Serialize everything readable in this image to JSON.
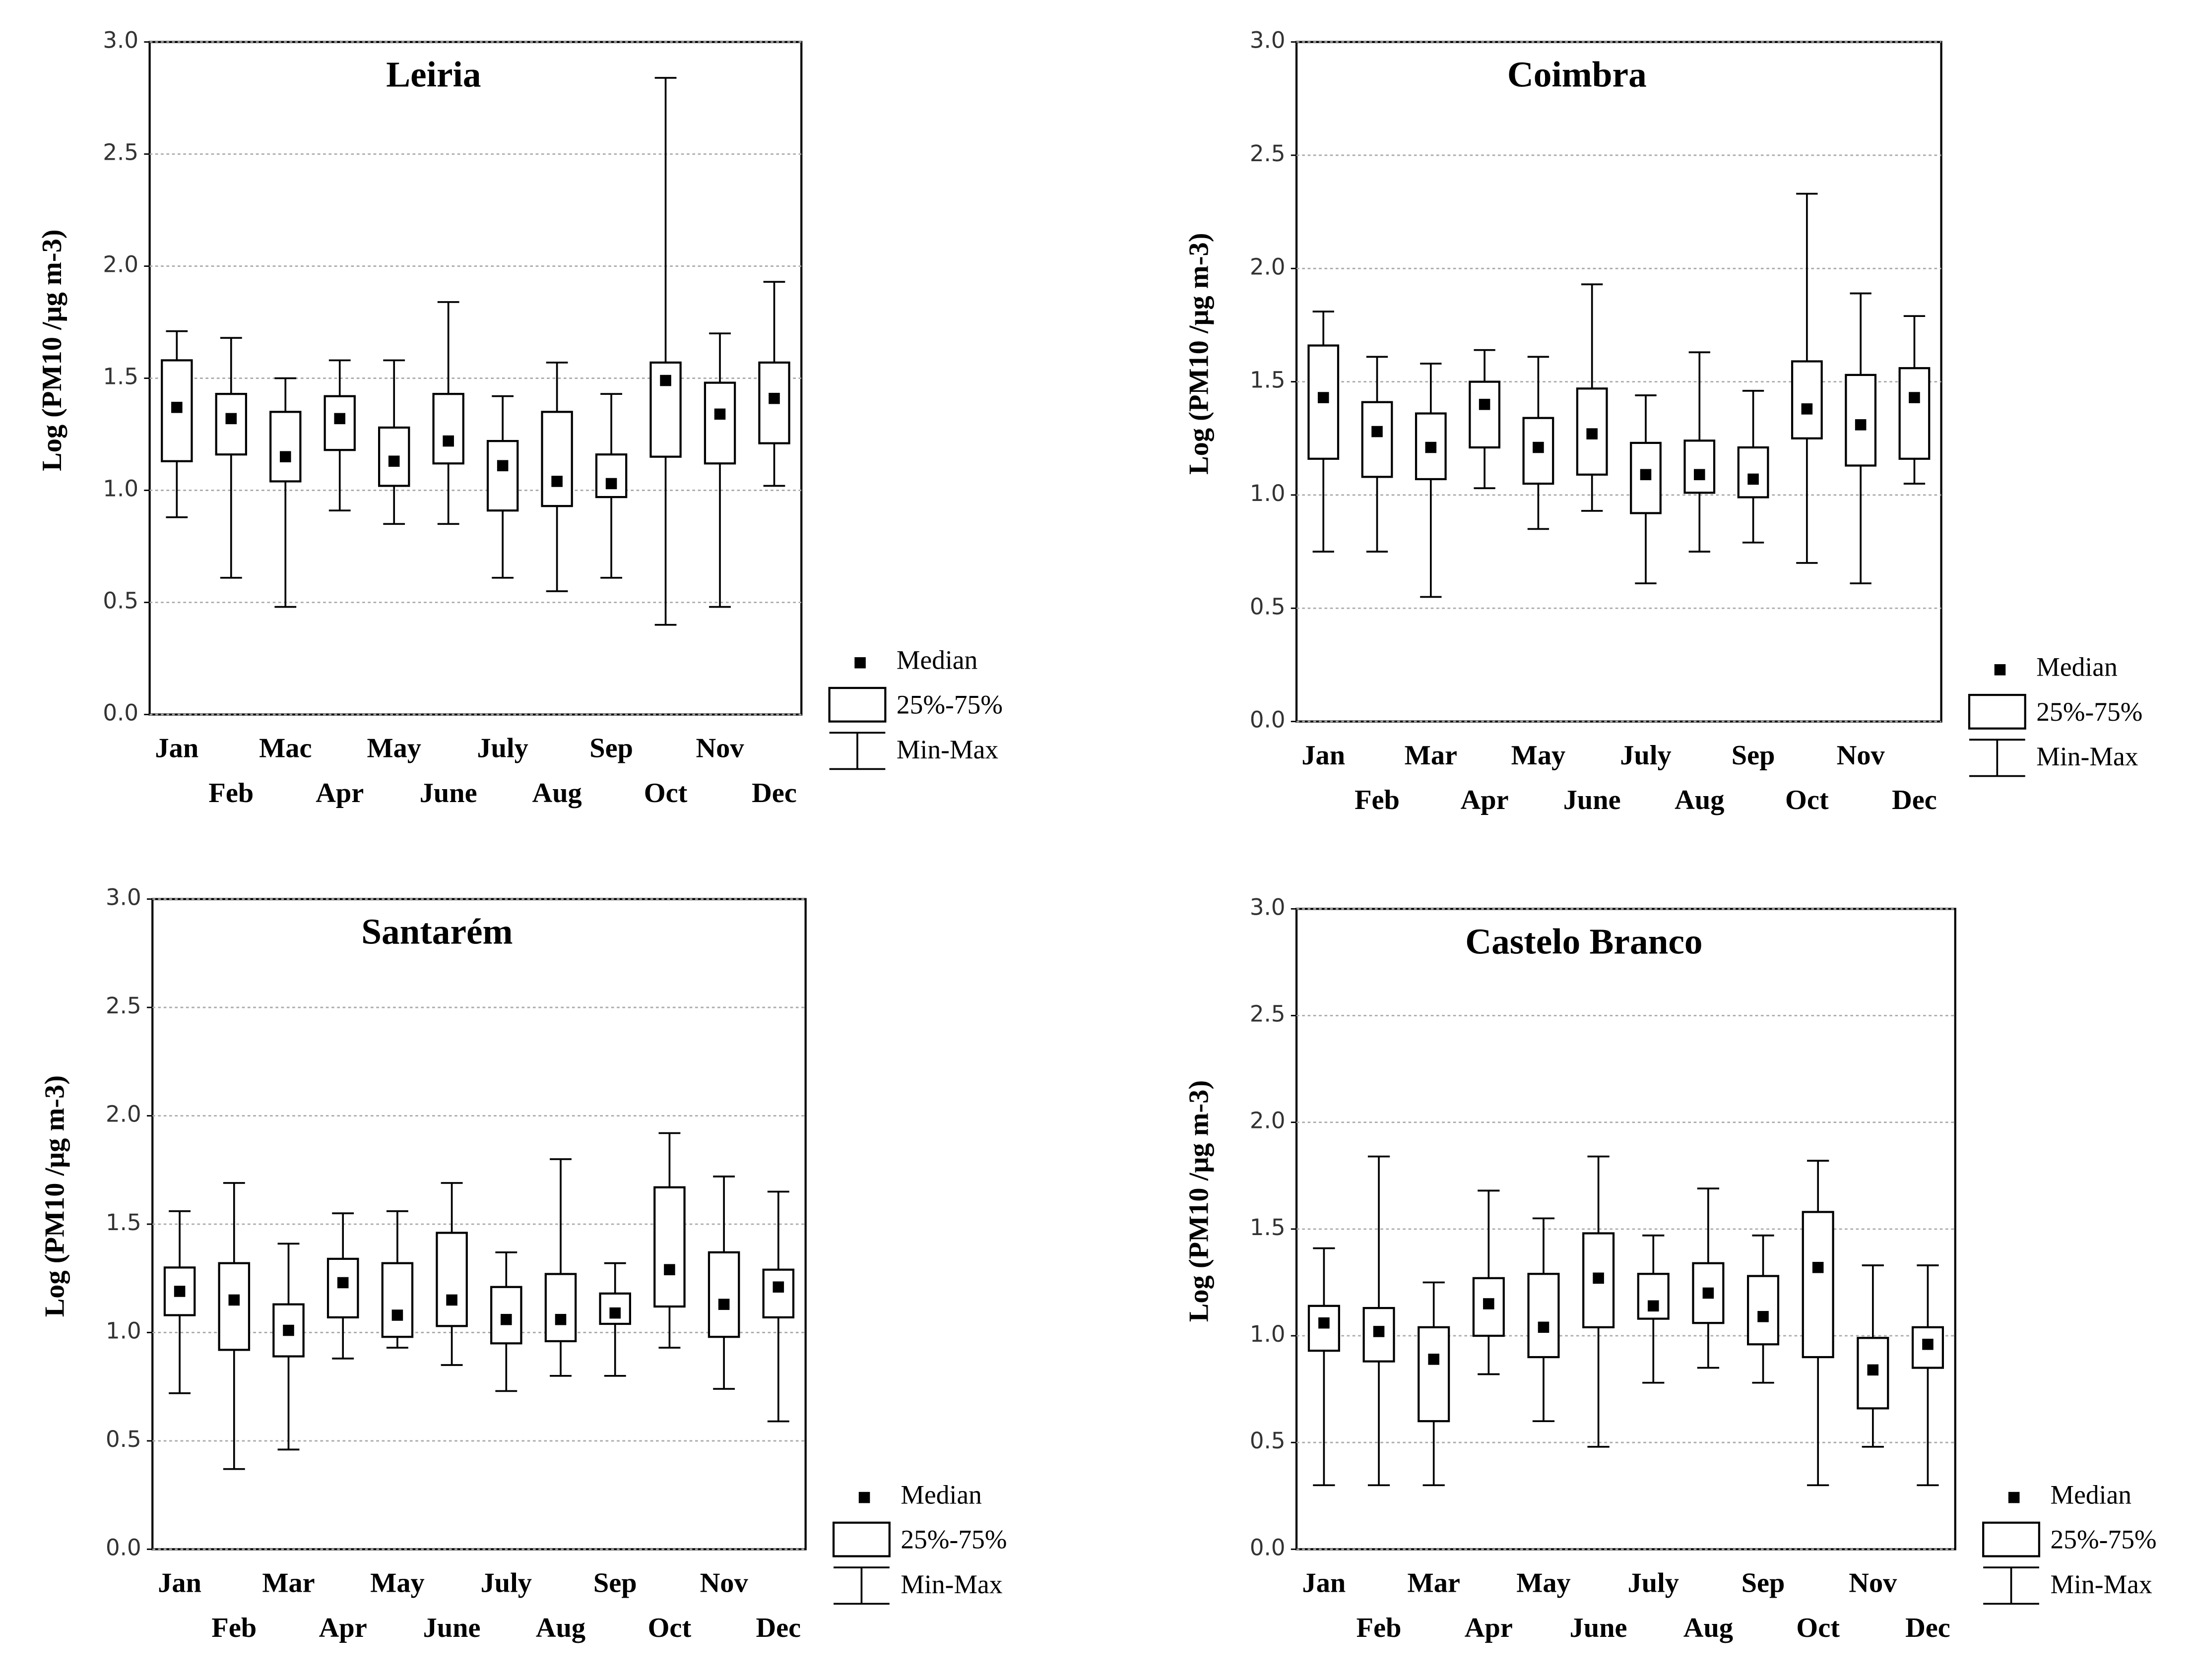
{
  "chart_data": [
    {
      "type": "box",
      "title": "Leiria",
      "y_label": "Log (PM10 /μg m-3)",
      "categories": [
        "Jan",
        "Feb",
        "Mac",
        "Apr",
        "May",
        "June",
        "July",
        "Aug",
        "Sep",
        "Oct",
        "Nov",
        "Dec"
      ],
      "min": [
        0.88,
        0.61,
        0.48,
        0.91,
        0.85,
        0.85,
        0.61,
        0.55,
        0.61,
        0.4,
        0.48,
        1.02
      ],
      "q1": [
        1.13,
        1.16,
        1.04,
        1.18,
        1.02,
        1.12,
        0.91,
        0.93,
        0.97,
        1.15,
        1.12,
        1.21
      ],
      "median": [
        1.37,
        1.32,
        1.15,
        1.32,
        1.13,
        1.22,
        1.11,
        1.04,
        1.03,
        1.49,
        1.34,
        1.41
      ],
      "q3": [
        1.58,
        1.43,
        1.35,
        1.42,
        1.28,
        1.43,
        1.22,
        1.35,
        1.16,
        1.57,
        1.48,
        1.57
      ],
      "max": [
        1.71,
        1.68,
        1.5,
        1.58,
        1.58,
        1.84,
        1.42,
        1.57,
        1.43,
        2.84,
        1.7,
        1.93
      ],
      "ylim": [
        0,
        3
      ],
      "yticks": [
        {
          "value": 0,
          "label": "0.0"
        },
        0.5,
        {
          "value": 1,
          "label": "1.0"
        },
        1.5,
        {
          "value": 2,
          "label": "2.0"
        },
        2.5,
        {
          "value": 3,
          "label": "3.0"
        }
      ],
      "grid": true,
      "color": "#000000",
      "legend": [
        "Median",
        "25%-75%",
        "Min-Max"
      ]
    },
    {
      "type": "box",
      "title": "Coimbra",
      "y_label": "Log (PM10 /μg m-3)",
      "categories": [
        "Jan",
        "Feb",
        "Mar",
        "Apr",
        "May",
        "June",
        "July",
        "Aug",
        "Sep",
        "Oct",
        "Nov",
        "Dec"
      ],
      "min": [
        0.75,
        0.75,
        0.55,
        1.03,
        0.85,
        0.93,
        0.61,
        0.75,
        0.79,
        0.7,
        0.61,
        1.05
      ],
      "q1": [
        1.16,
        1.08,
        1.07,
        1.21,
        1.05,
        1.09,
        0.92,
        1.01,
        0.99,
        1.25,
        1.13,
        1.16
      ],
      "median": [
        1.43,
        1.28,
        1.21,
        1.4,
        1.21,
        1.27,
        1.09,
        1.09,
        1.07,
        1.38,
        1.31,
        1.43
      ],
      "q3": [
        1.66,
        1.41,
        1.36,
        1.5,
        1.34,
        1.47,
        1.23,
        1.24,
        1.21,
        1.59,
        1.53,
        1.56
      ],
      "max": [
        1.81,
        1.61,
        1.58,
        1.64,
        1.61,
        1.93,
        1.44,
        1.63,
        1.46,
        2.33,
        1.89,
        1.79
      ],
      "ylim": [
        0,
        3
      ],
      "yticks": [
        {
          "value": 0,
          "label": "0.0"
        },
        0.5,
        {
          "value": 1,
          "label": "1.0"
        },
        1.5,
        {
          "value": 2,
          "label": "2.0"
        },
        2.5,
        {
          "value": 3,
          "label": "3.0"
        }
      ],
      "grid": true,
      "color": "#000000",
      "legend": [
        "Median",
        "25%-75%",
        "Min-Max"
      ]
    },
    {
      "type": "box",
      "title": "Santarém",
      "y_label": "Log (PM10 /μg m-3)",
      "categories": [
        "Jan",
        "Feb",
        "Mar",
        "Apr",
        "May",
        "June",
        "July",
        "Aug",
        "Sep",
        "Oct",
        "Nov",
        "Dec"
      ],
      "min": [
        0.72,
        0.37,
        0.46,
        0.88,
        0.93,
        0.85,
        0.73,
        0.8,
        0.8,
        0.93,
        0.74,
        0.59
      ],
      "q1": [
        1.08,
        0.92,
        0.89,
        1.07,
        0.98,
        1.03,
        0.95,
        0.96,
        1.04,
        1.12,
        0.98,
        1.07
      ],
      "median": [
        1.19,
        1.15,
        1.01,
        1.23,
        1.08,
        1.15,
        1.06,
        1.06,
        1.09,
        1.29,
        1.13,
        1.21
      ],
      "q3": [
        1.3,
        1.32,
        1.13,
        1.34,
        1.32,
        1.46,
        1.21,
        1.27,
        1.18,
        1.67,
        1.37,
        1.29
      ],
      "max": [
        1.56,
        1.69,
        1.41,
        1.55,
        1.56,
        1.69,
        1.37,
        1.8,
        1.32,
        1.92,
        1.72,
        1.65
      ],
      "ylim": [
        0,
        3
      ],
      "yticks": [
        {
          "value": 0,
          "label": "0.0"
        },
        0.5,
        {
          "value": 1,
          "label": "1.0"
        },
        1.5,
        {
          "value": 2,
          "label": "2.0"
        },
        2.5,
        {
          "value": 3,
          "label": "3.0"
        }
      ],
      "grid": true,
      "color": "#000000",
      "legend": [
        "Median",
        "25%-75%",
        "Min-Max"
      ]
    },
    {
      "type": "box",
      "title": "Castelo Branco",
      "y_label": "Log (PM10 /μg m-3)",
      "categories": [
        "Jan",
        "Feb",
        "Mar",
        "Apr",
        "May",
        "June",
        "July",
        "Aug",
        "Sep",
        "Oct",
        "Nov",
        "Dec"
      ],
      "min": [
        0.3,
        0.3,
        0.3,
        0.82,
        0.6,
        0.48,
        0.78,
        0.85,
        0.78,
        0.3,
        0.48,
        0.3
      ],
      "q1": [
        0.93,
        0.88,
        0.6,
        1.0,
        0.9,
        1.04,
        1.08,
        1.06,
        0.96,
        0.9,
        0.66,
        0.85
      ],
      "median": [
        1.06,
        1.02,
        0.89,
        1.15,
        1.04,
        1.27,
        1.14,
        1.2,
        1.09,
        1.32,
        0.84,
        0.96
      ],
      "q3": [
        1.14,
        1.13,
        1.04,
        1.27,
        1.29,
        1.48,
        1.29,
        1.34,
        1.28,
        1.58,
        0.99,
        1.04
      ],
      "max": [
        1.41,
        1.84,
        1.25,
        1.68,
        1.55,
        1.84,
        1.47,
        1.69,
        1.47,
        1.82,
        1.33,
        1.33
      ],
      "ylim": [
        0,
        3
      ],
      "yticks": [
        {
          "value": 0,
          "label": "0.0"
        },
        0.5,
        {
          "value": 1,
          "label": "1.0"
        },
        1.5,
        {
          "value": 2,
          "label": "2.0"
        },
        2.5,
        {
          "value": 3,
          "label": "3.0"
        }
      ],
      "grid": true,
      "color": "#000000",
      "legend": [
        "Median",
        "25%-75%",
        "Min-Max"
      ]
    }
  ]
}
